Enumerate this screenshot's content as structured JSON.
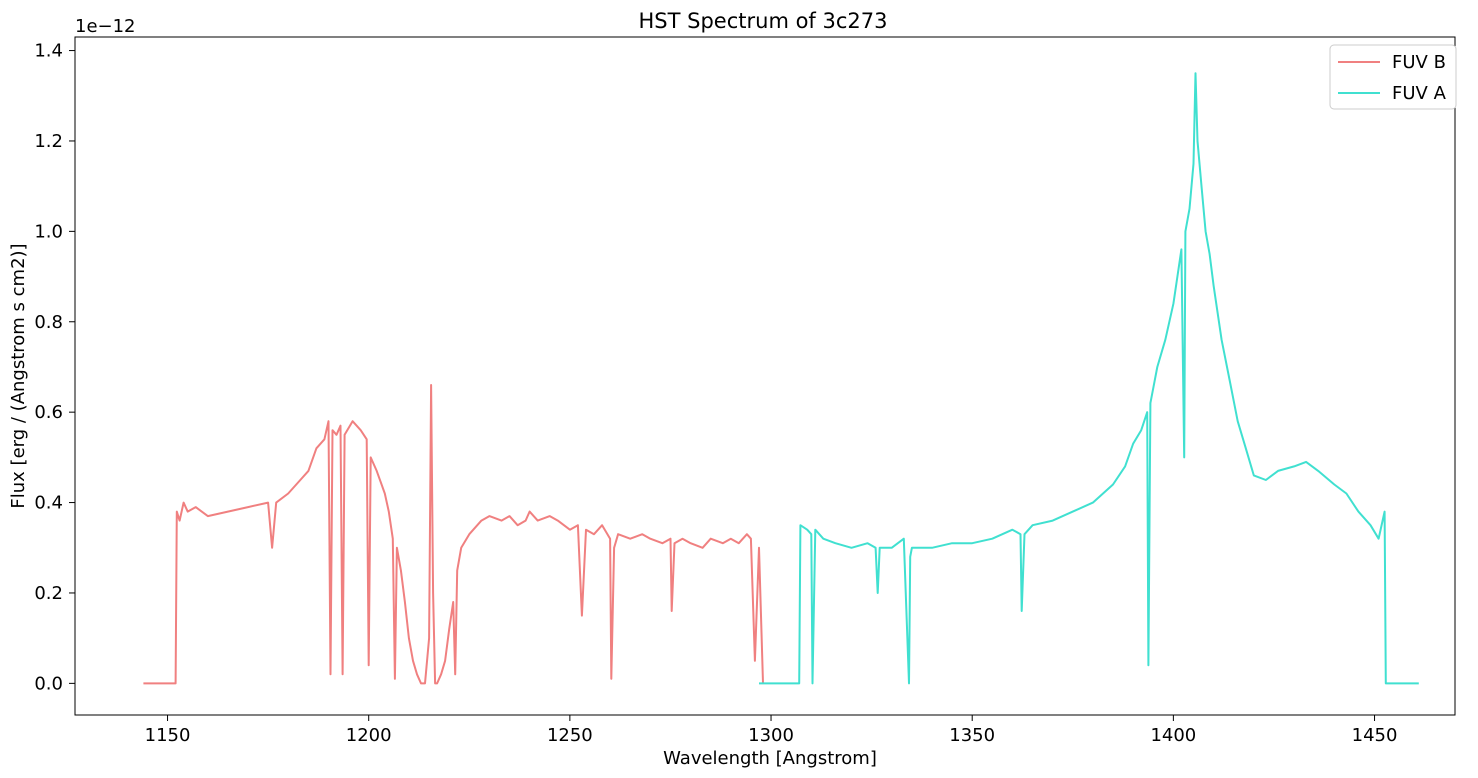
{
  "chart_data": {
    "type": "line",
    "title": "HST Spectrum of 3c273",
    "xlabel": "Wavelength [Angstrom]",
    "ylabel": "Flux [erg / (Angstrom s cm2)]",
    "y_offset_label": "1e−12",
    "xlim": [
      1127,
      1470
    ],
    "ylim": [
      -0.07,
      1.43
    ],
    "x_ticks": [
      1150,
      1200,
      1250,
      1300,
      1350,
      1400,
      1450
    ],
    "x_tick_labels": [
      "1150",
      "1200",
      "1250",
      "1300",
      "1350",
      "1400",
      "1450"
    ],
    "y_ticks": [
      0.0,
      0.2,
      0.4,
      0.6,
      0.8,
      1.0,
      1.2,
      1.4
    ],
    "y_tick_labels": [
      "0.0",
      "0.2",
      "0.4",
      "0.6",
      "0.8",
      "1.0",
      "1.2",
      "1.4"
    ],
    "grid": false,
    "legend_position": "top-right",
    "series": [
      {
        "name": "FUV B",
        "color": "#f08080",
        "x": [
          1144,
          1152,
          1152.3,
          1153,
          1154,
          1155,
          1157,
          1160,
          1165,
          1170,
          1175,
          1176,
          1177,
          1180,
          1183,
          1185,
          1187,
          1189,
          1190,
          1190.5,
          1191,
          1192,
          1193,
          1193.5,
          1194,
          1196,
          1198,
          1199.5,
          1200,
          1200.5,
          1201,
          1202,
          1204,
          1205,
          1206,
          1206.5,
          1207,
          1208,
          1209,
          1210,
          1211,
          1212,
          1213,
          1214,
          1215,
          1215.5,
          1216,
          1216.5,
          1217,
          1218,
          1219,
          1220,
          1221,
          1221.5,
          1222,
          1223,
          1225,
          1228,
          1230,
          1233,
          1235,
          1237,
          1239,
          1240,
          1242,
          1245,
          1247,
          1250,
          1252,
          1253,
          1254,
          1256,
          1258,
          1260,
          1260.3,
          1261,
          1262,
          1265,
          1268,
          1270,
          1273,
          1275,
          1275.3,
          1276,
          1278,
          1280,
          1283,
          1285,
          1288,
          1290,
          1292,
          1294,
          1295,
          1296,
          1297,
          1298
        ],
        "y": [
          0.0,
          0.0,
          0.38,
          0.36,
          0.4,
          0.38,
          0.39,
          0.37,
          0.38,
          0.39,
          0.4,
          0.3,
          0.4,
          0.42,
          0.45,
          0.47,
          0.52,
          0.54,
          0.58,
          0.02,
          0.56,
          0.55,
          0.57,
          0.02,
          0.55,
          0.58,
          0.56,
          0.54,
          0.04,
          0.5,
          0.49,
          0.47,
          0.42,
          0.38,
          0.32,
          0.01,
          0.3,
          0.25,
          0.18,
          0.1,
          0.05,
          0.02,
          0.0,
          0.0,
          0.1,
          0.66,
          0.2,
          0.0,
          0.0,
          0.02,
          0.05,
          0.12,
          0.18,
          0.02,
          0.25,
          0.3,
          0.33,
          0.36,
          0.37,
          0.36,
          0.37,
          0.35,
          0.36,
          0.38,
          0.36,
          0.37,
          0.36,
          0.34,
          0.35,
          0.15,
          0.34,
          0.33,
          0.35,
          0.32,
          0.01,
          0.3,
          0.33,
          0.32,
          0.33,
          0.32,
          0.31,
          0.32,
          0.16,
          0.31,
          0.32,
          0.31,
          0.3,
          0.32,
          0.31,
          0.32,
          0.31,
          0.33,
          0.32,
          0.05,
          0.3,
          0.0
        ]
      },
      {
        "name": "FUV A",
        "color": "#40e0d0",
        "x": [
          1297,
          1307,
          1307.3,
          1309,
          1310,
          1310.3,
          1311,
          1313,
          1316,
          1320,
          1324,
          1326,
          1326.5,
          1327,
          1330,
          1333,
          1334.3,
          1334.6,
          1335,
          1338,
          1340,
          1345,
          1350,
          1355,
          1360,
          1362,
          1362.3,
          1363,
          1365,
          1370,
          1375,
          1380,
          1385,
          1388,
          1390,
          1392,
          1393.5,
          1393.8,
          1394.3,
          1396,
          1398,
          1400,
          1401,
          1402,
          1402.7,
          1403,
          1404,
          1405,
          1405.5,
          1406,
          1407,
          1408,
          1409,
          1410,
          1412,
          1414,
          1416,
          1418,
          1420,
          1423,
          1426,
          1430,
          1433,
          1436,
          1440,
          1443,
          1446,
          1449,
          1451,
          1452.5,
          1452.8,
          1461
        ],
        "y": [
          0.0,
          0.0,
          0.35,
          0.34,
          0.33,
          0.0,
          0.34,
          0.32,
          0.31,
          0.3,
          0.31,
          0.3,
          0.2,
          0.3,
          0.3,
          0.32,
          0.0,
          0.28,
          0.3,
          0.3,
          0.3,
          0.31,
          0.31,
          0.32,
          0.34,
          0.33,
          0.16,
          0.33,
          0.35,
          0.36,
          0.38,
          0.4,
          0.44,
          0.48,
          0.53,
          0.56,
          0.6,
          0.04,
          0.62,
          0.7,
          0.76,
          0.84,
          0.9,
          0.96,
          0.5,
          1.0,
          1.05,
          1.15,
          1.35,
          1.2,
          1.1,
          1.0,
          0.95,
          0.88,
          0.76,
          0.67,
          0.58,
          0.52,
          0.46,
          0.45,
          0.47,
          0.48,
          0.49,
          0.47,
          0.44,
          0.42,
          0.38,
          0.35,
          0.32,
          0.38,
          0.0,
          0.0
        ]
      }
    ]
  }
}
